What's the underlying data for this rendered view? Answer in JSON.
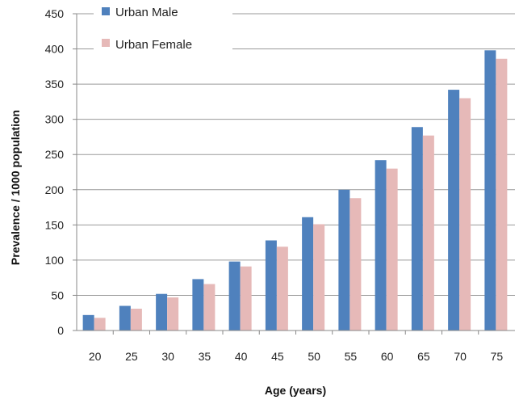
{
  "chart_data": {
    "type": "bar",
    "categories": [
      "20",
      "25",
      "30",
      "35",
      "40",
      "45",
      "50",
      "55",
      "60",
      "65",
      "70",
      "75"
    ],
    "series": [
      {
        "name": "Urban Male",
        "color": "#4f81bd",
        "values": [
          22,
          35,
          52,
          73,
          98,
          128,
          161,
          200,
          242,
          289,
          342,
          398
        ]
      },
      {
        "name": "Urban Female",
        "color": "#e6b9b8",
        "values": [
          18,
          31,
          47,
          66,
          91,
          119,
          151,
          188,
          230,
          277,
          330,
          386
        ]
      }
    ],
    "yticks": [
      "0",
      "50",
      "100",
      "150",
      "200",
      "250",
      "300",
      "350",
      "400",
      "450"
    ],
    "ylim": [
      0,
      450
    ],
    "xlabel": "Age (years)",
    "ylabel": "Prevalence / 1000 population",
    "grid": true,
    "legend_position": "top-left"
  }
}
